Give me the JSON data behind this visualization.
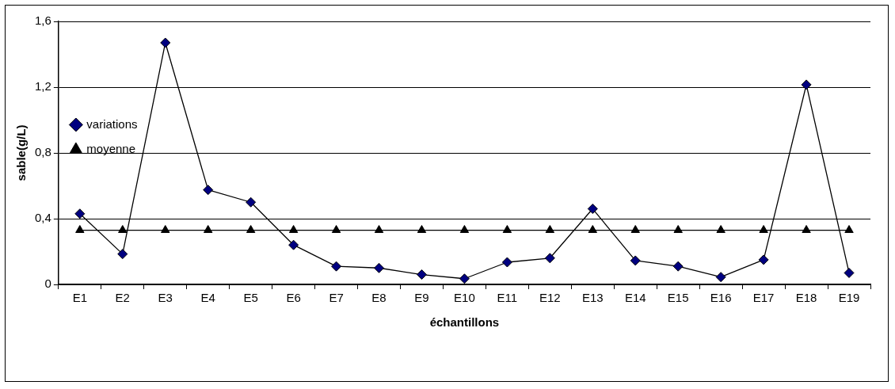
{
  "chart_data": {
    "type": "line",
    "xlabel": "échantillons",
    "ylabel": "sable(g/L)",
    "categories": [
      "E1",
      "E2",
      "E3",
      "E4",
      "E5",
      "E6",
      "E7",
      "E8",
      "E9",
      "E10",
      "E11",
      "E12",
      "E13",
      "E14",
      "E15",
      "E16",
      "E17",
      "E18",
      "E19"
    ],
    "series": [
      {
        "name": "variations",
        "color": "#000080",
        "marker": "diamond",
        "values": [
          0.43,
          0.185,
          1.47,
          0.575,
          0.5,
          0.24,
          0.11,
          0.1,
          0.06,
          0.035,
          0.135,
          0.16,
          0.46,
          0.145,
          0.11,
          0.045,
          0.15,
          1.215,
          0.07
        ]
      },
      {
        "name": "moyenne",
        "color": "#000000",
        "marker": "triangle",
        "values": [
          0.33,
          0.33,
          0.33,
          0.33,
          0.33,
          0.33,
          0.33,
          0.33,
          0.33,
          0.33,
          0.33,
          0.33,
          0.33,
          0.33,
          0.33,
          0.33,
          0.33,
          0.33,
          0.33
        ]
      }
    ],
    "ylim": [
      0,
      1.6
    ],
    "yticks": [
      {
        "value": 0,
        "label": "0"
      },
      {
        "value": 0.4,
        "label": "0,4"
      },
      {
        "value": 0.8,
        "label": "0,8"
      },
      {
        "value": 1.2,
        "label": "1,2"
      },
      {
        "value": 1.6,
        "label": "1,6"
      }
    ],
    "grid": "y",
    "legend": "top",
    "line_style": "solid"
  }
}
